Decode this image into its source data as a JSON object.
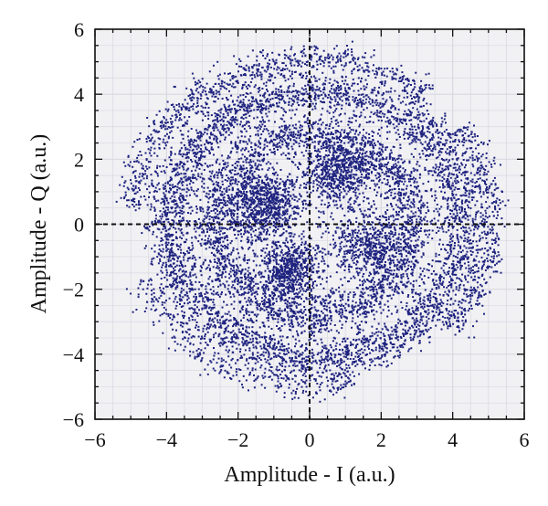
{
  "chart_data": {
    "type": "scatter",
    "title": "",
    "xlabel": "Amplitude - I (a.u.)",
    "ylabel": "Amplitude - Q (a.u.)",
    "xlim": [
      -6,
      6
    ],
    "ylim": [
      -6,
      6
    ],
    "xticks": [
      "−6",
      "−4",
      "−2",
      "0",
      "2",
      "4",
      "6"
    ],
    "yticks": [
      "6",
      "4",
      "2",
      "0",
      "−2",
      "−4",
      "−6"
    ],
    "grid": true,
    "legend": "none",
    "point_color": "#1f237f",
    "background_color": "#f1f1f4",
    "grid_color": "#d8d8e0",
    "zero_axis_color": "#111111",
    "clusters": [
      {
        "shape": "ring",
        "center": [
          0.2,
          0.0
        ],
        "radius": 4.1,
        "spread": 0.32,
        "count": 3600
      },
      {
        "shape": "ring",
        "center": [
          0.1,
          0.0
        ],
        "radius": 2.8,
        "spread": 0.35,
        "count": 2600
      },
      {
        "shape": "ring",
        "center": [
          0.3,
          3.6
        ],
        "radius": 1.6,
        "spread": 0.35,
        "count": 0
      },
      {
        "shape": "blob",
        "center": [
          -1.3,
          0.6
        ],
        "spread": 0.55,
        "count": 900
      },
      {
        "shape": "blob",
        "center": [
          -0.6,
          -1.4
        ],
        "spread": 0.5,
        "count": 700
      },
      {
        "shape": "blob",
        "center": [
          0.8,
          1.6
        ],
        "spread": 0.5,
        "count": 700
      },
      {
        "shape": "blob",
        "center": [
          1.6,
          -0.6
        ],
        "spread": 0.55,
        "count": 600
      },
      {
        "shape": "arc",
        "center": [
          0.0,
          0.0
        ],
        "radius": 5.0,
        "from_deg": 95,
        "to_deg": 175,
        "spread": 0.25,
        "count": 500
      },
      {
        "shape": "arc",
        "center": [
          0.0,
          0.0
        ],
        "radius": 5.1,
        "from_deg": -40,
        "to_deg": 35,
        "spread": 0.22,
        "count": 420
      },
      {
        "shape": "arc",
        "center": [
          0.0,
          0.0
        ],
        "radius": 4.9,
        "from_deg": 200,
        "to_deg": 285,
        "spread": 0.25,
        "count": 380
      },
      {
        "shape": "arc",
        "center": [
          0.0,
          0.0
        ],
        "radius": 5.1,
        "from_deg": 50,
        "to_deg": 95,
        "spread": 0.22,
        "count": 260
      }
    ]
  }
}
